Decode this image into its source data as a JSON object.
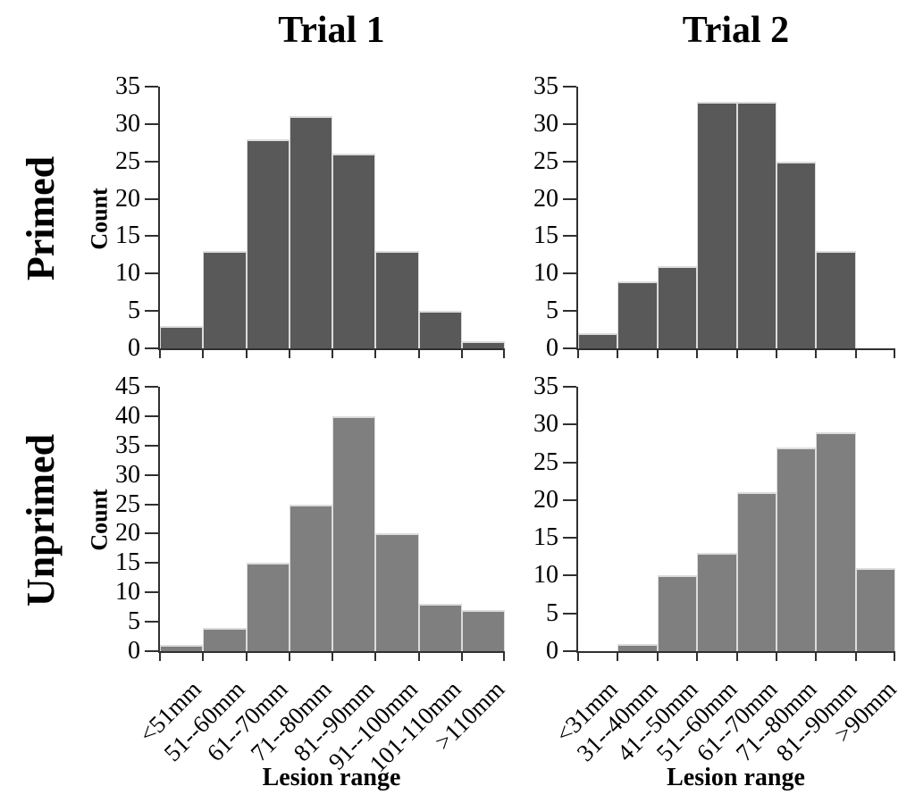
{
  "figure": {
    "column_titles": [
      "Trial 1",
      "Trial 2"
    ],
    "row_labels": [
      "Primed",
      "Unprimed"
    ],
    "x_axis_title": "Lesion range",
    "y_axis_title": "Count"
  },
  "colors": {
    "primed_bar": "#595959",
    "unprimed_bar": "#7f7f7f",
    "bar_border": "#dcdcdc",
    "axis": "#303030",
    "text": "#000000"
  },
  "chart_data": [
    {
      "id": "primed-trial-1",
      "type": "bar",
      "row_label": "Primed",
      "column_title": "Trial 1",
      "ylabel": "Count",
      "xlabel": "Lesion range",
      "ylim": [
        0,
        35
      ],
      "ytick_step": 5,
      "grid": false,
      "categories": [
        "<51mm",
        "51--60mm",
        "61--70mm",
        "71--80mm",
        "81--90mm",
        "91--100mm",
        "101-110mm",
        ">110mm"
      ],
      "values": [
        3,
        13,
        28,
        31,
        26,
        13,
        5,
        1
      ],
      "bar_color": "#595959"
    },
    {
      "id": "primed-trial-2",
      "type": "bar",
      "row_label": "Primed",
      "column_title": "Trial 2",
      "ylabel": "",
      "xlabel": "Lesion range",
      "ylim": [
        0,
        35
      ],
      "ytick_step": 5,
      "grid": false,
      "categories": [
        "<31mm",
        "31--40mm",
        "41--50mm",
        "51--60mm",
        "61--70mm",
        "71--80mm",
        "81--90mm",
        ">90mm"
      ],
      "values": [
        2,
        9,
        11,
        33,
        33,
        25,
        13,
        0
      ],
      "bar_color": "#595959"
    },
    {
      "id": "unprimed-trial-1",
      "type": "bar",
      "row_label": "Unprimed",
      "column_title": "Trial 1",
      "ylabel": "Count",
      "xlabel": "Lesion range",
      "ylim": [
        0,
        45
      ],
      "ytick_step": 5,
      "grid": false,
      "categories": [
        "<51mm",
        "51--60mm",
        "61--70mm",
        "71--80mm",
        "81--90mm",
        "91--100mm",
        "101-110mm",
        ">110mm"
      ],
      "values": [
        1,
        4,
        15,
        25,
        40,
        20,
        8,
        7
      ],
      "bar_color": "#7f7f7f"
    },
    {
      "id": "unprimed-trial-2",
      "type": "bar",
      "row_label": "Unprimed",
      "column_title": "Trial 2",
      "ylabel": "",
      "xlabel": "Lesion range",
      "ylim": [
        0,
        35
      ],
      "ytick_step": 5,
      "grid": false,
      "categories": [
        "<31mm",
        "31--40mm",
        "41--50mm",
        "51--60mm",
        "61--70mm",
        "71--80mm",
        "81--90mm",
        ">90mm"
      ],
      "values": [
        0,
        1,
        10,
        13,
        21,
        27,
        29,
        11
      ],
      "bar_color": "#7f7f7f"
    }
  ]
}
